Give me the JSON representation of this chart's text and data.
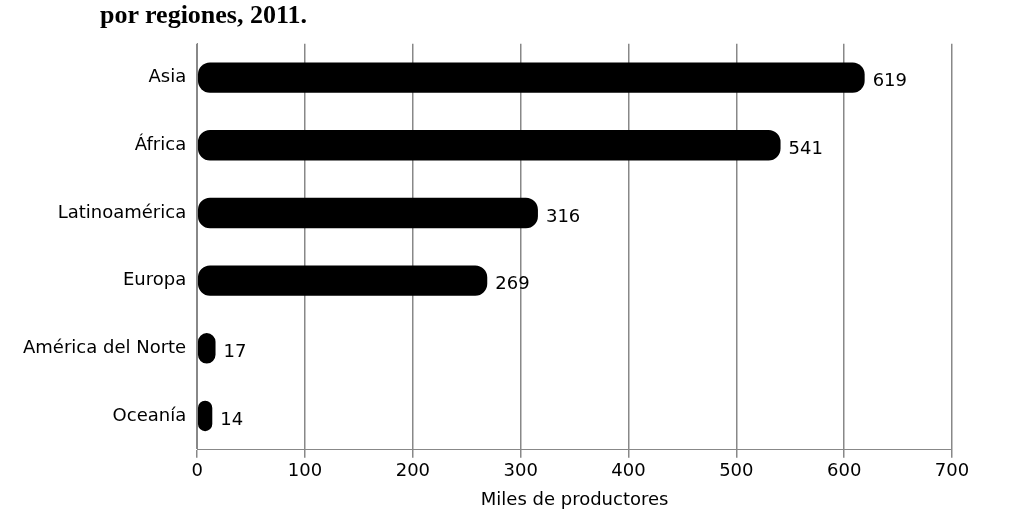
{
  "chart_data": {
    "type": "bar",
    "orientation": "horizontal",
    "title": "por regiones, 2011.",
    "xlabel": "Miles de productores",
    "categories": [
      "Asia",
      "África",
      "Latinoamérica",
      "Europa",
      "América del Norte",
      "Oceanía"
    ],
    "values": [
      619,
      541,
      316,
      269,
      17,
      14
    ],
    "color": "#000000",
    "xlim": [
      0,
      700
    ],
    "xticks": [
      0,
      100,
      200,
      300,
      400,
      500,
      600,
      700
    ],
    "grid": "x",
    "data_labels": true
  }
}
